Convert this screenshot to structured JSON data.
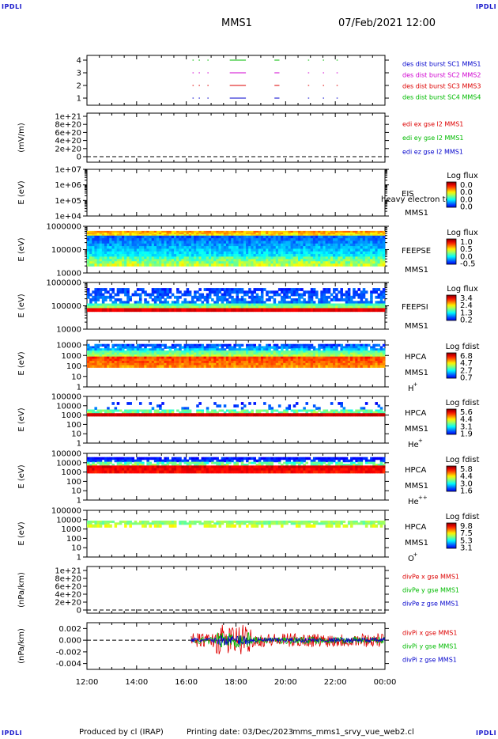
{
  "corners": [
    "IPDLI",
    "IPDLI",
    "IPDLI",
    "IPDLI"
  ],
  "header": {
    "title": "MMS1",
    "datetime": "07/Feb/2021 12:00"
  },
  "footer": {
    "produced_by": "Produced by cl (IRAP)",
    "printing_date": "Printing date: 03/Dec/2023",
    "file": "mms_mms1_srvy_vue_web2.cl"
  },
  "x_axis": {
    "ticks": [
      "12:00",
      "14:00",
      "16:00",
      "18:00",
      "20:00",
      "22:00",
      "00:00"
    ],
    "range_hours": [
      12,
      24
    ]
  },
  "colors": {
    "blue": "#0000cc",
    "magenta": "#d000d0",
    "red": "#dd0000",
    "green": "#00bb00",
    "grey": "#333333"
  },
  "chart_data": [
    {
      "type": "line",
      "panel": "burst",
      "y_ticks": [
        "4",
        "3",
        "2",
        "1"
      ],
      "legend": [
        {
          "label": "des dist burst SC1 MMS1",
          "color": "#0000cc"
        },
        {
          "label": "des dist burst SC2 MMS2",
          "color": "#d000d0"
        },
        {
          "label": "des dist burst SC3 MMS3",
          "color": "#dd0000"
        },
        {
          "label": "des dist burst SC4 MMS4",
          "color": "#00bb00"
        }
      ],
      "segments": [
        [
          16.25,
          16.3
        ],
        [
          16.5,
          16.55
        ],
        [
          16.85,
          16.9
        ],
        [
          17.75,
          18.4
        ],
        [
          19.55,
          19.75
        ],
        [
          20.9,
          20.95
        ],
        [
          21.5,
          21.55
        ],
        [
          22.05,
          22.1
        ]
      ]
    },
    {
      "type": "line",
      "panel": "edi",
      "ylabel": "(mV/m)",
      "y_ticks": [
        "1e+21",
        "8e+20",
        "6e+20",
        "4e+20",
        "2e+20",
        "0"
      ],
      "legend": [
        {
          "label": "edi ex gse l2 MMS1",
          "color": "#dd0000"
        },
        {
          "label": "edi ey gse l2 MMS1",
          "color": "#00bb00"
        },
        {
          "label": "edi ez gse l2 MMS1",
          "color": "#0000cc"
        }
      ]
    },
    {
      "type": "heatmap",
      "panel": "eis",
      "ylabel": "E (eV)",
      "y_ticks": [
        "1e+07",
        "1e+06",
        "1e+05",
        "1e+04"
      ],
      "labels": [
        "EIS",
        "MMS1"
      ],
      "overlay_text": "heavy electron to",
      "colorbar": {
        "title": "Log flux",
        "ticks": [
          "0.0",
          "0.0",
          "0.0",
          "0.0"
        ]
      }
    },
    {
      "type": "heatmap",
      "panel": "feepse",
      "ylabel": "E (eV)",
      "y_ticks": [
        "1000000",
        "100000",
        "10000"
      ],
      "labels": [
        "FEEPSE",
        "MMS1"
      ],
      "colorbar": {
        "title": "Log flux",
        "ticks": [
          "1.0",
          "0.5",
          "0.0",
          "-0.5"
        ]
      }
    },
    {
      "type": "heatmap",
      "panel": "feepsi",
      "ylabel": "E (eV)",
      "y_ticks": [
        "1000000",
        "100000",
        "10000"
      ],
      "labels": [
        "FEEPSI",
        "MMS1"
      ],
      "colorbar": {
        "title": "Log flux",
        "ticks": [
          "3.4",
          "2.4",
          "1.3",
          "0.2"
        ]
      }
    },
    {
      "type": "heatmap",
      "panel": "hpca_h",
      "ylabel": "E (eV)",
      "y_ticks": [
        "10000",
        "1000",
        "100",
        "10",
        "1"
      ],
      "labels": [
        "HPCA",
        "MMS1"
      ],
      "species": "H",
      "species_sup": "+",
      "colorbar": {
        "title": "Log fdist",
        "ticks": [
          "6.8",
          "4.7",
          "2.7",
          "0.7"
        ]
      }
    },
    {
      "type": "heatmap",
      "panel": "hpca_he",
      "ylabel": "E (eV)",
      "y_ticks": [
        "100000",
        "10000",
        "1000",
        "100",
        "10",
        "1"
      ],
      "labels": [
        "HPCA",
        "MMS1"
      ],
      "species": "He",
      "species_sup": "+",
      "colorbar": {
        "title": "Log fdist",
        "ticks": [
          "5.6",
          "4.4",
          "3.1",
          "1.9"
        ]
      }
    },
    {
      "type": "heatmap",
      "panel": "hpca_hepp",
      "ylabel": "E (eV)",
      "y_ticks": [
        "100000",
        "10000",
        "1000",
        "100",
        "10",
        "1"
      ],
      "labels": [
        "HPCA",
        "MMS1"
      ],
      "species": "He",
      "species_sup": "++",
      "colorbar": {
        "title": "Log fdist",
        "ticks": [
          "5.8",
          "4.4",
          "3.0",
          "1.6"
        ]
      }
    },
    {
      "type": "heatmap",
      "panel": "hpca_o",
      "ylabel": "E (eV)",
      "y_ticks": [
        "100000",
        "10000",
        "1000",
        "100",
        "10",
        "1"
      ],
      "labels": [
        "HPCA",
        "MMS1"
      ],
      "species": "O",
      "species_sup": "+",
      "colorbar": {
        "title": "Log fdist",
        "ticks": [
          "9.8",
          "7.5",
          "5.3",
          "3.1"
        ]
      }
    },
    {
      "type": "line",
      "panel": "divpe",
      "ylabel": "(nPa/km)",
      "y_ticks": [
        "1e+21",
        "8e+20",
        "6e+20",
        "4e+20",
        "2e+20",
        "0"
      ],
      "legend": [
        {
          "label": "divPe x gse MMS1",
          "color": "#dd0000"
        },
        {
          "label": "divPe y gse MMS1",
          "color": "#00bb00"
        },
        {
          "label": "divPe z gse MMS1",
          "color": "#0000cc"
        }
      ]
    },
    {
      "type": "line",
      "panel": "divpi",
      "ylabel": "(nPa/km)",
      "y_ticks": [
        "0.002",
        "0.000",
        "-0.002",
        "-0.004"
      ],
      "y_range": [
        -0.005,
        0.003
      ],
      "data_start_hour": 16.2,
      "legend": [
        {
          "label": "divPi x gse MMS1",
          "color": "#dd0000"
        },
        {
          "label": "divPi y gse MMS1",
          "color": "#00bb00"
        },
        {
          "label": "divPi z gse MMS1",
          "color": "#0000cc"
        }
      ]
    }
  ]
}
